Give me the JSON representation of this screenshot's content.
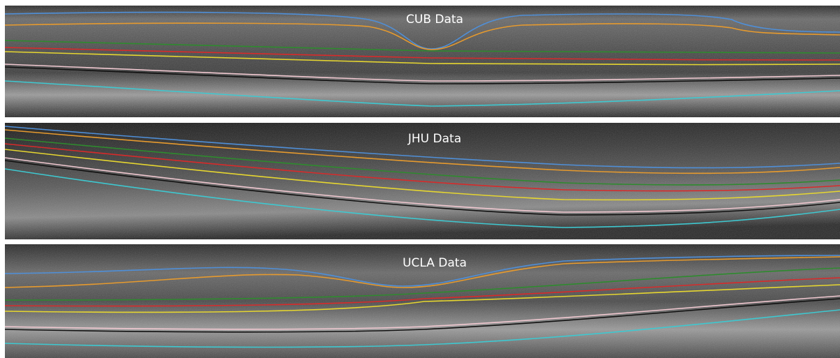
{
  "panels": [
    {
      "label": "CUB Data"
    },
    {
      "label": "JHU Data"
    },
    {
      "label": "UCLA Data"
    }
  ]
}
